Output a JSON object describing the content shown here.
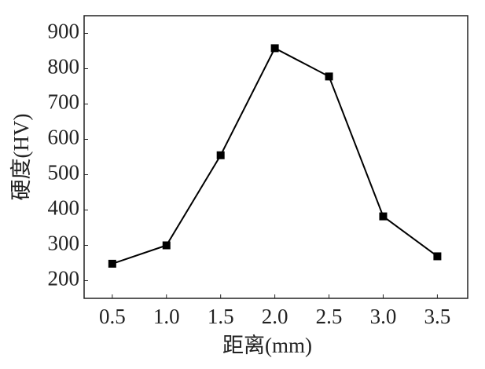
{
  "chart_data": {
    "type": "line",
    "x_label": "距离(mm)",
    "y_label": "硬度(HV)",
    "series": [
      {
        "name": "硬度",
        "color": "#000000",
        "x": [
          0.5,
          1.0,
          1.5,
          2.0,
          2.5,
          3.0,
          3.5
        ],
        "values": [
          248,
          300,
          555,
          858,
          778,
          382,
          269
        ]
      }
    ],
    "xlim": [
      0.24,
      3.78
    ],
    "xticks": [
      0.5,
      {
        "value": 1,
        "label": "1.0"
      },
      1.5,
      {
        "value": 2,
        "label": "2.0"
      },
      2.5,
      {
        "value": 3,
        "label": "3.0"
      },
      3.5
    ],
    "ylim": [
      150,
      950
    ],
    "yticks": [
      200,
      300,
      400,
      500,
      600,
      700,
      800,
      900
    ]
  }
}
